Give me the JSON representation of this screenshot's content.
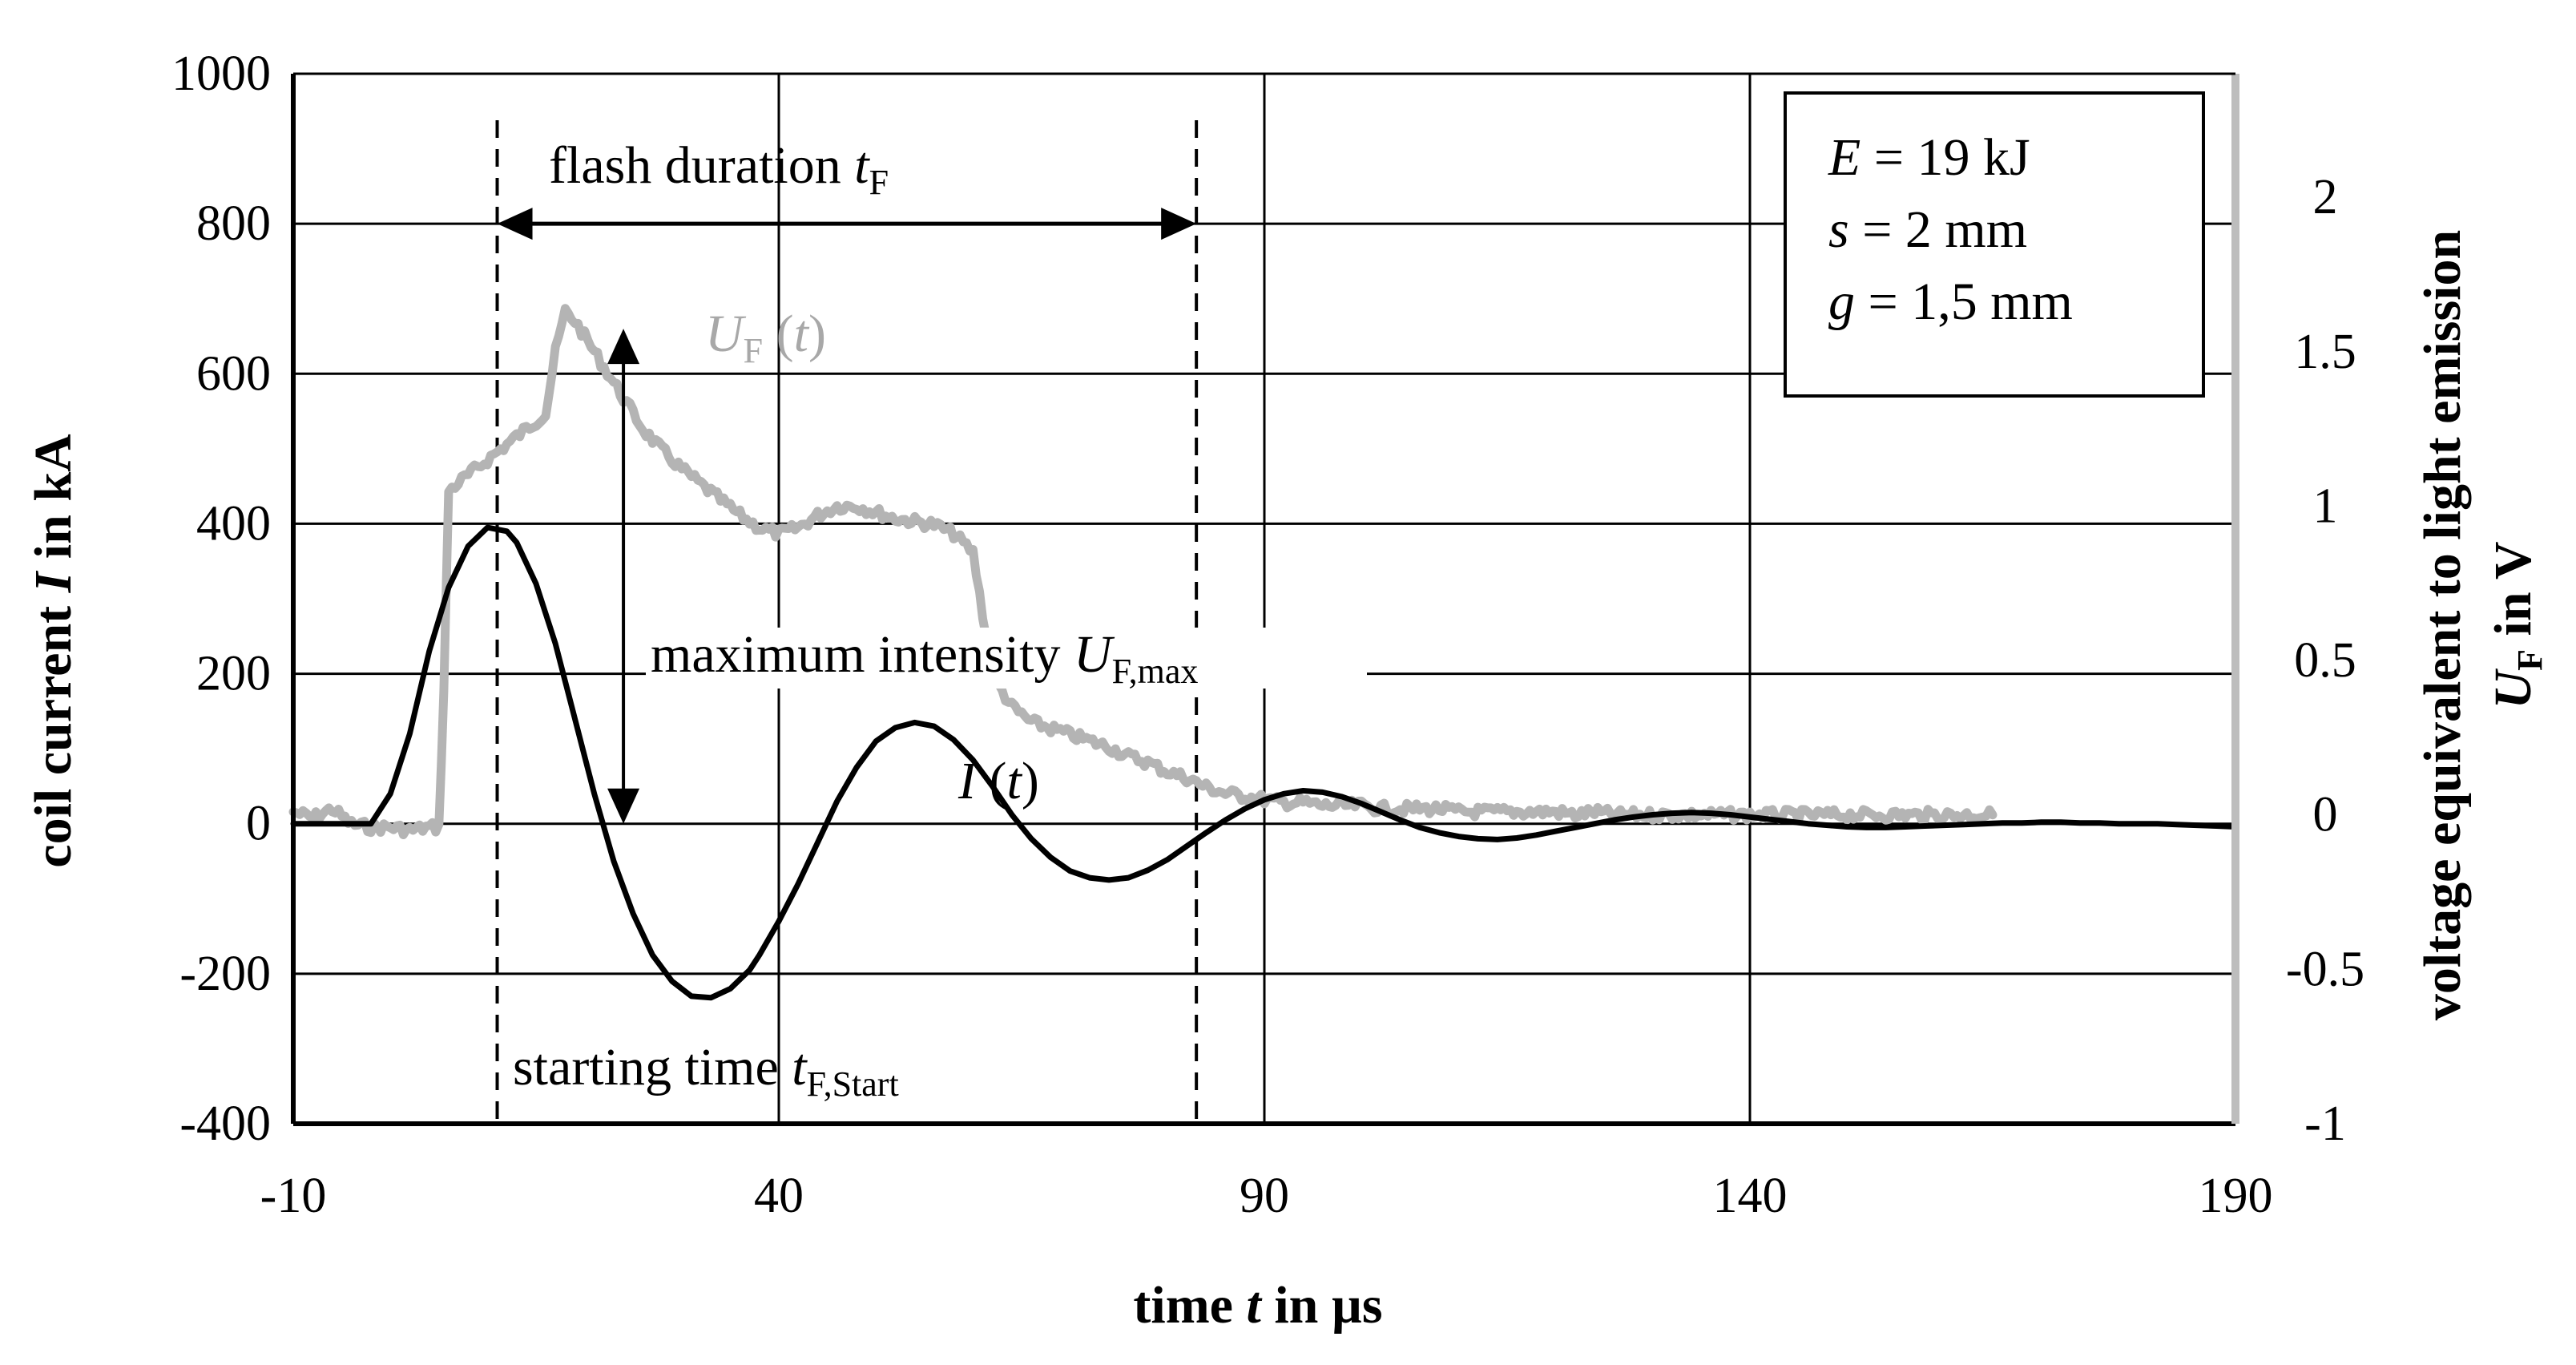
{
  "chart_data": {
    "type": "line",
    "title": "",
    "xlabel": {
      "pre": "time ",
      "var": "t",
      "post": " in µs"
    },
    "ylabel_left": {
      "pre": "coil current ",
      "var": "I",
      "post": " in kA"
    },
    "ylabel_right": {
      "line1": "voltage equivalent to light emission",
      "var": "U",
      "sub": "F",
      "post": " in V"
    },
    "x_ticks": [
      "-10",
      "40",
      "90",
      "140",
      "190"
    ],
    "y_left_ticks": [
      "1000",
      "800",
      "600",
      "400",
      "200",
      "0",
      "-200",
      "-400"
    ],
    "y_right_ticks": [
      "2",
      "1.5",
      "1",
      "0.5",
      "0",
      "-0.5",
      "-1"
    ],
    "xlim": [
      -10,
      190
    ],
    "ylim_left": [
      -400,
      1000
    ],
    "ylim_right": [
      -1,
      2.4
    ],
    "grid": true,
    "series": [
      {
        "name": "I (t)",
        "axis": "left",
        "color": "#000000",
        "x": [
          -10,
          -2,
          0,
          2,
          4,
          6,
          8,
          10,
          12,
          13,
          15,
          17,
          19,
          21,
          23,
          25,
          27,
          29,
          31,
          33,
          35,
          37,
          38,
          40,
          42,
          44,
          46,
          48,
          50,
          52,
          54,
          56,
          58,
          60,
          62,
          64,
          66,
          68,
          70,
          72,
          74,
          76,
          78,
          80,
          82,
          84,
          86,
          88,
          90,
          92,
          94,
          96,
          98,
          100,
          102,
          104,
          106,
          108,
          110,
          112,
          114,
          116,
          118,
          120,
          122,
          124,
          126,
          128,
          130,
          132,
          134,
          136,
          138,
          140,
          142,
          144,
          146,
          148,
          150,
          152,
          154,
          156,
          158,
          160,
          162,
          164,
          166,
          168,
          170,
          172,
          174,
          176,
          178,
          180,
          182,
          184,
          186,
          188,
          190
        ],
        "values": [
          0,
          0,
          40,
          120,
          230,
          315,
          370,
          395,
          390,
          375,
          320,
          240,
          140,
          40,
          -50,
          -120,
          -175,
          -210,
          -230,
          -232,
          -220,
          -195,
          -175,
          -130,
          -80,
          -25,
          30,
          75,
          110,
          128,
          135,
          130,
          112,
          85,
          50,
          12,
          -20,
          -45,
          -63,
          -72,
          -75,
          -72,
          -62,
          -48,
          -30,
          -12,
          5,
          20,
          32,
          40,
          44,
          42,
          36,
          27,
          16,
          5,
          -5,
          -12,
          -17,
          -20,
          -21,
          -19,
          -15,
          -10,
          -5,
          0,
          5,
          9,
          12,
          14,
          15,
          14,
          12,
          9,
          6,
          3,
          0,
          -2,
          -4,
          -5,
          -5,
          -4,
          -3,
          -2,
          -1,
          0,
          1,
          1,
          2,
          2,
          1,
          1,
          0,
          0,
          0,
          -1,
          -2,
          -3,
          -4
        ]
      },
      {
        "name": "U_F (t)",
        "axis": "right",
        "color": "#b4b4b4",
        "x": [
          -10,
          -8,
          -6,
          -4,
          -2,
          0,
          2,
          4,
          5,
          5.5,
          6,
          8,
          10,
          12,
          14,
          16,
          17,
          18,
          19,
          20,
          22,
          24,
          26,
          28,
          30,
          32,
          34,
          36,
          38,
          40,
          42,
          44,
          46,
          48,
          50,
          52,
          54,
          56,
          58,
          60,
          62,
          64,
          66,
          68,
          70,
          72,
          74,
          76,
          78,
          80,
          82,
          84,
          86,
          88,
          90,
          92,
          94,
          96,
          98,
          100,
          102,
          104,
          106,
          108,
          110,
          112,
          114,
          116,
          118,
          120,
          122,
          124,
          126,
          128,
          130,
          132,
          134,
          136,
          138,
          140,
          142,
          144,
          146,
          148,
          150,
          152,
          154,
          156,
          158,
          160,
          162,
          164,
          165
        ],
        "values": [
          0.01,
          -0.01,
          0.02,
          -0.03,
          -0.04,
          -0.04,
          -0.05,
          -0.04,
          -0.04,
          0.4,
          1.05,
          1.1,
          1.15,
          1.2,
          1.25,
          1.3,
          1.5,
          1.63,
          1.6,
          1.55,
          1.45,
          1.35,
          1.25,
          1.18,
          1.12,
          1.07,
          1.02,
          0.97,
          0.93,
          0.91,
          0.93,
          0.97,
          1.0,
          1.0,
          0.98,
          0.96,
          0.95,
          0.94,
          0.91,
          0.85,
          0.45,
          0.35,
          0.3,
          0.28,
          0.26,
          0.24,
          0.22,
          0.19,
          0.17,
          0.14,
          0.12,
          0.09,
          0.07,
          0.06,
          0.05,
          0.04,
          0.04,
          0.03,
          0.03,
          0.03,
          0.02,
          0.02,
          0.02,
          0.02,
          0.01,
          0.01,
          0.01,
          0.01,
          0.01,
          0.01,
          0.0,
          0.01,
          0.0,
          0.0,
          0.0,
          0.0,
          0.0,
          0.0,
          0.0,
          0.0,
          0.0,
          0.0,
          0.0,
          0.0,
          0.0,
          0.0,
          0.0,
          0.0,
          0.0,
          0.0,
          0.0,
          0.0,
          0.0
        ]
      }
    ],
    "vlines": [
      {
        "name": "flash-start-line",
        "x": 11
      },
      {
        "name": "flash-end-line",
        "x": 83
      }
    ],
    "annotations": {
      "flash_duration": {
        "text": "flash duration ",
        "var": "t",
        "sub": "F",
        "x_from": 11,
        "x_to": 83,
        "y_left": 800
      },
      "maximum_intensity": {
        "text": "maximum intensity ",
        "var": "U",
        "sub": "F,max",
        "x": 24,
        "y_left_from": 0,
        "y_left_to": 660
      },
      "starting_time": {
        "text": "starting time ",
        "var": "t",
        "sub": "F,Start"
      },
      "label_I": {
        "var": "I",
        "post": " (",
        "var2": "t",
        "close": ")"
      },
      "label_U": {
        "var": "U",
        "sub": "F",
        "post": " (",
        "var2": "t",
        "close": ")"
      }
    },
    "legend_box": {
      "lines": [
        {
          "var": "E",
          "rest": " = 19 kJ"
        },
        {
          "var": "s",
          "rest": " = 2 mm"
        },
        {
          "var": "g",
          "rest": " = 1,5 mm"
        }
      ],
      "placement": "top-right"
    }
  }
}
